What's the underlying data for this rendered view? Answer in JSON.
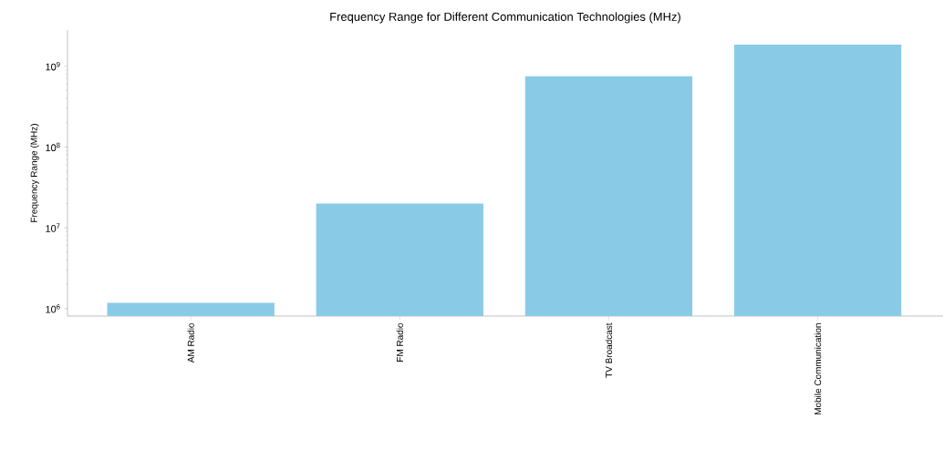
{
  "chart_data": {
    "type": "bar",
    "title": "Frequency Range for Different Communication Technologies (MHz)",
    "ylabel": "Frequency Range (MHz)",
    "categories": [
      "AM Radio",
      "FM Radio",
      "TV Broadcast",
      "Mobile Communication"
    ],
    "values": [
      1180000,
      20000000,
      750000000,
      1850000000
    ],
    "color": "#89cbe7",
    "log": "y",
    "ylim": [
      810000,
      2800000000
    ],
    "yticks": [
      {
        "value": 1000000,
        "label": "10$^{6}$"
      },
      {
        "value": 10000000,
        "label": "10$^{7}$"
      },
      {
        "value": 100000000,
        "label": "10$^{8}$"
      },
      {
        "value": 1000000000,
        "label": "10$^{9}$"
      }
    ],
    "grid": false
  }
}
